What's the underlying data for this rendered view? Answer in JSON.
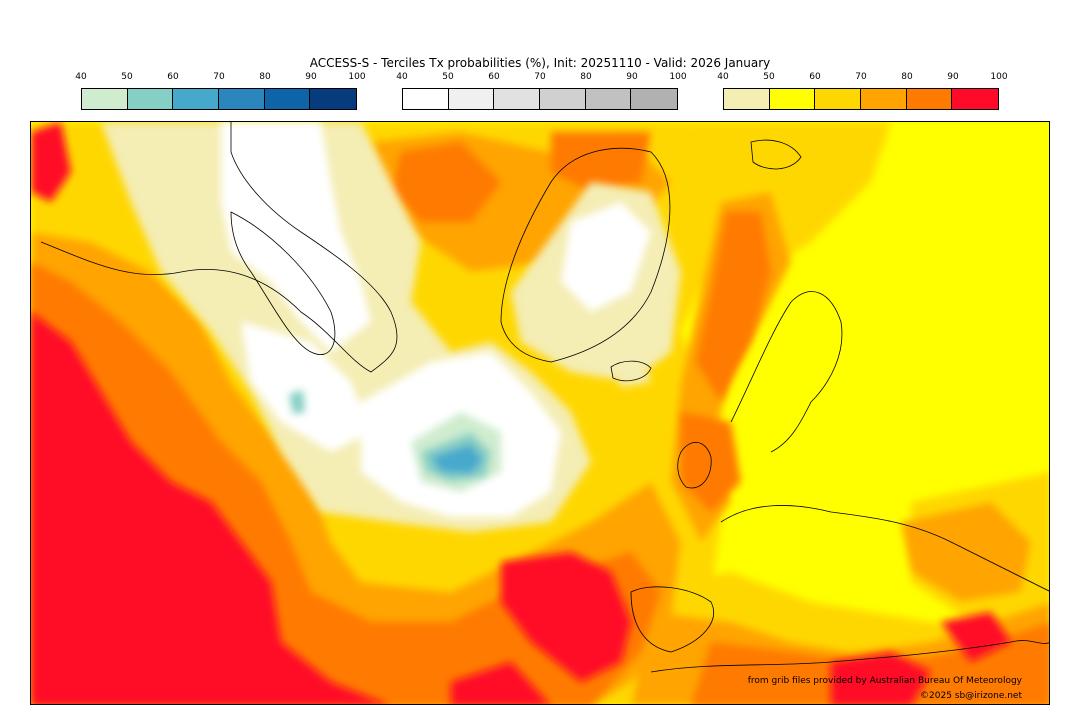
{
  "title": "ACCESS-S - Terciles Tx probabilities (%), Init: 20251110 - Valid: 2026 January",
  "scales": [
    {
      "ticks": [
        "40",
        "50",
        "60",
        "70",
        "80",
        "90",
        "100"
      ],
      "colors": [
        "#cfeccf",
        "#86cfc4",
        "#46a9cc",
        "#2a86bd",
        "#0f63a8",
        "#063b7d"
      ]
    },
    {
      "ticks": [
        "40",
        "50",
        "60",
        "70",
        "80",
        "90",
        "100"
      ],
      "colors": [
        "#ffffff",
        "#f0f0f0",
        "#e1e1e1",
        "#d0d0d0",
        "#c1c1c1",
        "#b1b1b1"
      ]
    },
    {
      "ticks": [
        "40",
        "50",
        "60",
        "70",
        "80",
        "90",
        "100"
      ],
      "colors": [
        "#f4edb4",
        "#ffff00",
        "#ffd700",
        "#ffa400",
        "#ff7a00",
        "#ff0a28"
      ]
    }
  ],
  "credits": {
    "source": "from grib files provided by Australian Bureau Of Meteorology",
    "copyright": "©2025 sb@irizone.net"
  }
}
